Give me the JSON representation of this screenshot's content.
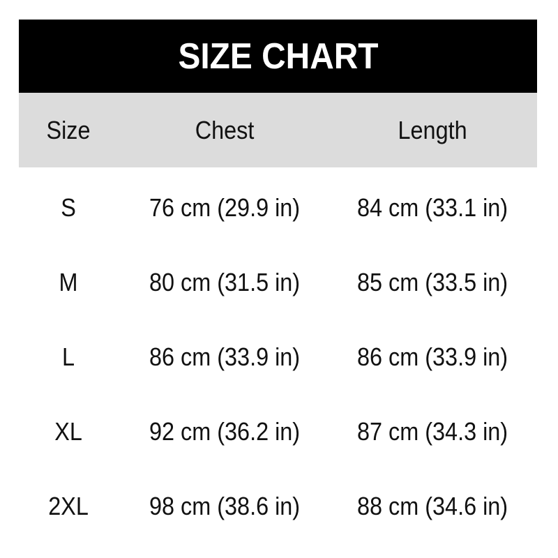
{
  "title": "SIZE CHART",
  "headers": [
    "Size",
    "Chest",
    "Length"
  ],
  "rows": [
    [
      "S",
      "76 cm (29.9 in)",
      "84 cm (33.1 in)"
    ],
    [
      "M",
      "80 cm (31.5 in)",
      "85 cm (33.5 in)"
    ],
    [
      "L",
      "86 cm (33.9 in)",
      "86 cm (33.9 in)"
    ],
    [
      "XL",
      "92 cm (36.2 in)",
      "87 cm (34.3 in)"
    ],
    [
      "2XL",
      "98 cm (38.6 in)",
      "88 cm (34.6 in)"
    ]
  ],
  "colors": {
    "title_bg": "#000000",
    "title_text": "#ffffff",
    "header_bg": "#dcdcdc"
  }
}
